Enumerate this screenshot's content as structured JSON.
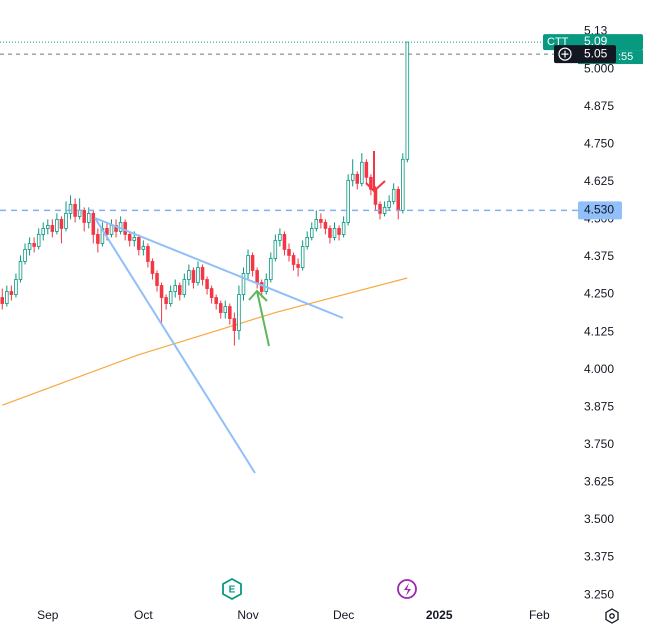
{
  "chart_data": {
    "type": "candlestick",
    "ohlc": [
      [
        4.24,
        4.27,
        4.2,
        4.22
      ],
      [
        4.22,
        4.28,
        4.21,
        4.26
      ],
      [
        4.26,
        4.28,
        4.23,
        4.25
      ],
      [
        4.25,
        4.32,
        4.24,
        4.3
      ],
      [
        4.3,
        4.38,
        4.29,
        4.36
      ],
      [
        4.36,
        4.42,
        4.35,
        4.4
      ],
      [
        4.4,
        4.44,
        4.38,
        4.42
      ],
      [
        4.42,
        4.44,
        4.39,
        4.41
      ],
      [
        4.41,
        4.47,
        4.4,
        4.45
      ],
      [
        4.45,
        4.49,
        4.43,
        4.47
      ],
      [
        4.47,
        4.5,
        4.45,
        4.48
      ],
      [
        4.48,
        4.5,
        4.44,
        4.46
      ],
      [
        4.46,
        4.52,
        4.45,
        4.5
      ],
      [
        4.5,
        4.51,
        4.42,
        4.47
      ],
      [
        4.47,
        4.56,
        4.46,
        4.52
      ],
      [
        4.52,
        4.58,
        4.5,
        4.55
      ],
      [
        4.55,
        4.57,
        4.49,
        4.51
      ],
      [
        4.51,
        4.57,
        4.5,
        4.53
      ],
      [
        4.53,
        4.54,
        4.46,
        4.49
      ],
      [
        4.49,
        4.54,
        4.47,
        4.52
      ],
      [
        4.52,
        4.53,
        4.42,
        4.45
      ],
      [
        4.45,
        4.47,
        4.39,
        4.42
      ],
      [
        4.42,
        4.49,
        4.41,
        4.47
      ],
      [
        4.47,
        4.49,
        4.43,
        4.45
      ],
      [
        4.45,
        4.5,
        4.44,
        4.48
      ],
      [
        4.48,
        4.5,
        4.44,
        4.46
      ],
      [
        4.46,
        4.51,
        4.45,
        4.49
      ],
      [
        4.49,
        4.5,
        4.43,
        4.45
      ],
      [
        4.45,
        4.46,
        4.41,
        4.43
      ],
      [
        4.43,
        4.46,
        4.41,
        4.44
      ],
      [
        4.44,
        4.45,
        4.38,
        4.4
      ],
      [
        4.4,
        4.43,
        4.38,
        4.41
      ],
      [
        4.41,
        4.42,
        4.34,
        4.36
      ],
      [
        4.36,
        4.37,
        4.3,
        4.32
      ],
      [
        4.32,
        4.33,
        4.26,
        4.28
      ],
      [
        4.28,
        4.29,
        4.15,
        4.24
      ],
      [
        4.24,
        4.25,
        4.2,
        4.22
      ],
      [
        4.22,
        4.28,
        4.21,
        4.26
      ],
      [
        4.26,
        4.3,
        4.24,
        4.28
      ],
      [
        4.28,
        4.29,
        4.23,
        4.25
      ],
      [
        4.25,
        4.32,
        4.24,
        4.3
      ],
      [
        4.3,
        4.35,
        4.28,
        4.33
      ],
      [
        4.33,
        4.34,
        4.27,
        4.29
      ],
      [
        4.29,
        4.36,
        4.28,
        4.34
      ],
      [
        4.34,
        4.35,
        4.28,
        4.3
      ],
      [
        4.3,
        4.31,
        4.25,
        4.27
      ],
      [
        4.27,
        4.28,
        4.22,
        4.24
      ],
      [
        4.24,
        4.25,
        4.2,
        4.22
      ],
      [
        4.22,
        4.23,
        4.17,
        4.19
      ],
      [
        4.19,
        4.23,
        4.17,
        4.21
      ],
      [
        4.21,
        4.22,
        4.15,
        4.17
      ],
      [
        4.17,
        4.19,
        4.08,
        4.13
      ],
      [
        4.13,
        4.28,
        4.1,
        4.25
      ],
      [
        4.25,
        4.34,
        4.23,
        4.32
      ],
      [
        4.32,
        4.4,
        4.3,
        4.38
      ],
      [
        4.38,
        4.39,
        4.31,
        4.33
      ],
      [
        4.33,
        4.34,
        4.27,
        4.29
      ],
      [
        4.29,
        4.3,
        4.24,
        4.26
      ],
      [
        4.26,
        4.32,
        4.25,
        4.3
      ],
      [
        4.3,
        4.39,
        4.29,
        4.37
      ],
      [
        4.37,
        4.45,
        4.36,
        4.43
      ],
      [
        4.43,
        4.47,
        4.41,
        4.45
      ],
      [
        4.45,
        4.46,
        4.38,
        4.4
      ],
      [
        4.4,
        4.42,
        4.36,
        4.38
      ],
      [
        4.38,
        4.39,
        4.33,
        4.35
      ],
      [
        4.35,
        4.37,
        4.31,
        4.34
      ],
      [
        4.34,
        4.43,
        4.33,
        4.41
      ],
      [
        4.41,
        4.46,
        4.4,
        4.44
      ],
      [
        4.44,
        4.49,
        4.43,
        4.47
      ],
      [
        4.47,
        4.53,
        4.46,
        4.5
      ],
      [
        4.5,
        4.52,
        4.47,
        4.49
      ],
      [
        4.49,
        4.5,
        4.45,
        4.47
      ],
      [
        4.47,
        4.48,
        4.42,
        4.44
      ],
      [
        4.44,
        4.49,
        4.43,
        4.47
      ],
      [
        4.47,
        4.48,
        4.43,
        4.45
      ],
      [
        4.45,
        4.51,
        4.44,
        4.49
      ],
      [
        4.49,
        4.65,
        4.48,
        4.63
      ],
      [
        4.63,
        4.7,
        4.61,
        4.65
      ],
      [
        4.65,
        4.66,
        4.6,
        4.62
      ],
      [
        4.62,
        4.72,
        4.61,
        4.69
      ],
      [
        4.69,
        4.7,
        4.62,
        4.64
      ],
      [
        4.64,
        4.65,
        4.58,
        4.6
      ],
      [
        4.6,
        4.61,
        4.53,
        4.55
      ],
      [
        4.55,
        4.56,
        4.5,
        4.52
      ],
      [
        4.52,
        4.56,
        4.51,
        4.54
      ],
      [
        4.54,
        4.58,
        4.53,
        4.56
      ],
      [
        4.56,
        4.62,
        4.55,
        4.6
      ],
      [
        4.6,
        4.61,
        4.5,
        4.53
      ],
      [
        4.53,
        4.72,
        4.52,
        4.7
      ],
      [
        4.7,
        5.09,
        4.69,
        5.09
      ]
    ],
    "up_color": "#089981",
    "down_color": "#f23645",
    "ma": {
      "x": [
        0,
        30,
        60,
        89
      ],
      "values": [
        3.882,
        4.05,
        4.19,
        4.305
      ],
      "color": "#f7a940"
    },
    "xlim": [
      -0.5,
      126.5
    ],
    "ylim": [
      3.217,
      5.23
    ],
    "xticks": [
      {
        "value": 10,
        "label": "Sep"
      },
      {
        "value": 31,
        "label": "Oct"
      },
      {
        "value": 54,
        "label": "Nov"
      },
      {
        "value": 75,
        "label": "Dec"
      },
      {
        "value": 96,
        "label": "2025"
      },
      {
        "value": 118,
        "label": "Feb"
      }
    ],
    "yticks": [
      {
        "value": 5.125,
        "label": "5.13"
      },
      {
        "value": 5.0,
        "label": "5.000"
      },
      {
        "value": 4.875,
        "label": "4.875"
      },
      {
        "value": 4.75,
        "label": "4.750"
      },
      {
        "value": 4.625,
        "label": "4.625"
      },
      {
        "value": 4.5,
        "label": "4.500"
      },
      {
        "value": 4.375,
        "label": "4.375"
      },
      {
        "value": 4.25,
        "label": "4.250"
      },
      {
        "value": 4.125,
        "label": "4.125"
      },
      {
        "value": 4.0,
        "label": "4.000"
      },
      {
        "value": 3.875,
        "label": "3.875"
      },
      {
        "value": 3.75,
        "label": "3.750"
      },
      {
        "value": 3.625,
        "label": "3.625"
      },
      {
        "value": 3.5,
        "label": "3.500"
      },
      {
        "value": 3.375,
        "label": "3.375"
      },
      {
        "value": 3.25,
        "label": "3.250"
      }
    ],
    "price_line": {
      "value": 4.53,
      "label": "4.530"
    },
    "symbol": "CTT",
    "last_price": 5.09,
    "countdown": ":55",
    "crosshair_price": 5.05,
    "events": [
      "E"
    ]
  }
}
